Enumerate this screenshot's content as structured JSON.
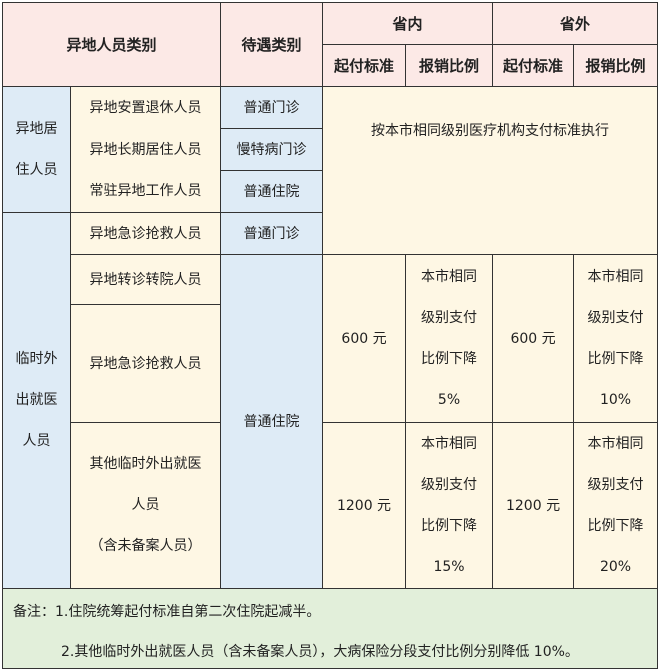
{
  "header": {
    "category": "异地人员类别",
    "treatment": "待遇类别",
    "in_province": "省内",
    "out_province": "省外",
    "deductible": "起付标准",
    "ratio": "报销比例"
  },
  "groups": [
    {
      "label": "异地居住人员",
      "label_lines": [
        "异地居",
        "住人员"
      ]
    },
    {
      "label": "临时外出就医人员",
      "label_lines": [
        "临时外",
        "出就医",
        "人员"
      ]
    }
  ],
  "rows": [
    {
      "person": "异地安置退休人员",
      "treatment": "普通门诊"
    },
    {
      "person": "异地长期居住人员",
      "treatment": "慢特病门诊"
    },
    {
      "person": "常驻异地工作人员",
      "treatment": "普通住院"
    },
    {
      "person": "异地急诊抢救人员",
      "treatment": "普通门诊"
    },
    {
      "person": "异地转诊转院人员",
      "treatment": "普通住院"
    },
    {
      "person": "异地急诊抢救人员"
    },
    {
      "person_lines": [
        "其他临时外出就医",
        "人员",
        "（含未备案人员）"
      ]
    }
  ],
  "same_standard": "按本市相同级别医疗机构支付标准执行",
  "tier1": {
    "in_deductible": "600 元",
    "in_ratio_lines": [
      "本市相同",
      "级别支付",
      "比例下降",
      "5%"
    ],
    "out_deductible": "600 元",
    "out_ratio_lines": [
      "本市相同",
      "级别支付",
      "比例下降",
      "10%"
    ]
  },
  "tier2": {
    "in_deductible": "1200 元",
    "in_ratio_lines": [
      "本市相同",
      "级别支付",
      "比例下降",
      "15%"
    ],
    "out_deductible": "1200 元",
    "out_ratio_lines": [
      "本市相同",
      "级别支付",
      "比例下降",
      "20%"
    ]
  },
  "notes": {
    "line1": "备注：1.住院统筹起付标准自第二次住院起减半。",
    "line2": "2.其他临时外出就医人员（含未备案人员），大病保险分段支付比例分别降低 10%。"
  },
  "colors": {
    "header": "#fce9e6",
    "blue": "#deebf6",
    "cream": "#fef7e4",
    "green": "#e2efda"
  }
}
